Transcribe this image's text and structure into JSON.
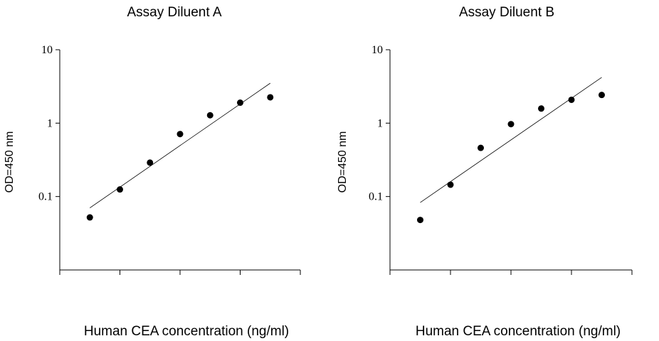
{
  "chart_data": [
    {
      "type": "scatter",
      "title": "Assay Diluent A",
      "xlabel": "Human CEA concentration (ng/ml)",
      "ylabel": "OD=450 nm",
      "yscale": "log",
      "ylim": [
        0.01,
        10
      ],
      "yticks": [
        "0.1",
        "1",
        "10"
      ],
      "x_tick_count": 4,
      "grid": false,
      "series": [
        {
          "points": [
            {
              "x": 1,
              "y": 0.052
            },
            {
              "x": 2,
              "y": 0.125
            },
            {
              "x": 3,
              "y": 0.29
            },
            {
              "x": 4,
              "y": 0.71
            },
            {
              "x": 5,
              "y": 1.28
            },
            {
              "x": 6,
              "y": 1.9
            },
            {
              "x": 7,
              "y": 2.25
            }
          ]
        }
      ],
      "fit_line": {
        "from": {
          "x": 1,
          "y": 0.07
        },
        "to": {
          "x": 7,
          "y": 3.5
        }
      }
    },
    {
      "type": "scatter",
      "title": "Assay Diluent B",
      "xlabel": "Human CEA concentration (ng/ml)",
      "ylabel": "OD=450 nm",
      "yscale": "log",
      "ylim": [
        0.01,
        10
      ],
      "yticks": [
        "0.1",
        "1",
        "10"
      ],
      "x_tick_count": 4,
      "grid": false,
      "series": [
        {
          "points": [
            {
              "x": 1,
              "y": 0.048
            },
            {
              "x": 2,
              "y": 0.145
            },
            {
              "x": 3,
              "y": 0.46
            },
            {
              "x": 4,
              "y": 0.97
            },
            {
              "x": 5,
              "y": 1.58
            },
            {
              "x": 6,
              "y": 2.08
            },
            {
              "x": 7,
              "y": 2.42
            }
          ]
        }
      ],
      "fit_line": {
        "from": {
          "x": 1,
          "y": 0.083
        },
        "to": {
          "x": 7,
          "y": 4.2
        }
      }
    }
  ]
}
